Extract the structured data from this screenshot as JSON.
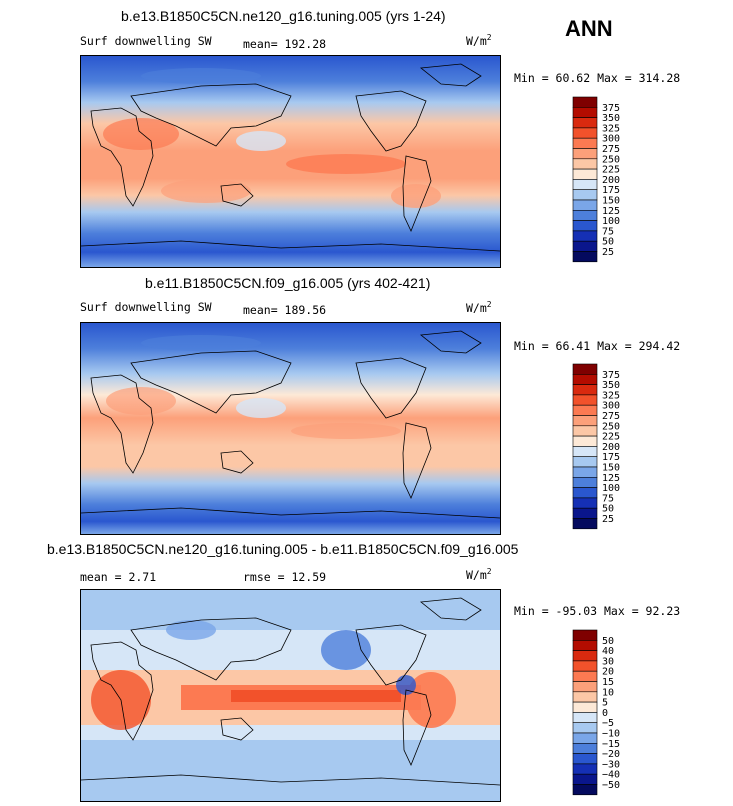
{
  "season": "ANN",
  "panels": [
    {
      "title": "b.e13.B1850C5CN.ne120_g16.tuning.005 (yrs 1-24)",
      "left_label": "Surf downwelling SW",
      "mid_label": "mean= 192.28",
      "units_base": "W/m",
      "units_sup": "2",
      "minmax": "Min =  60.62 Max = 314.28",
      "levels": [
        "375",
        "350",
        "325",
        "300",
        "275",
        "250",
        "225",
        "200",
        "175",
        "150",
        "125",
        "100",
        "75",
        "50",
        "25"
      ],
      "colors": [
        "#7f0000",
        "#b30c00",
        "#d92a0f",
        "#f2522b",
        "#fc7a52",
        "#fca07a",
        "#fcc7a6",
        "#fde9d7",
        "#d6e6f7",
        "#a7c9f0",
        "#7aa6e8",
        "#4d7fdb",
        "#2a57cf",
        "#1530b5",
        "#0a168c",
        "#040a5e"
      ]
    },
    {
      "title": "b.e11.B1850C5CN.f09_g16.005 (yrs 402-421)",
      "left_label": "Surf downwelling SW",
      "mid_label": "mean= 189.56",
      "units_base": "W/m",
      "units_sup": "2",
      "minmax": "Min =  66.41 Max = 294.42",
      "levels": [
        "375",
        "350",
        "325",
        "300",
        "275",
        "250",
        "225",
        "200",
        "175",
        "150",
        "125",
        "100",
        "75",
        "50",
        "25"
      ],
      "colors": [
        "#7f0000",
        "#b30c00",
        "#d92a0f",
        "#f2522b",
        "#fc7a52",
        "#fca07a",
        "#fcc7a6",
        "#fde9d7",
        "#d6e6f7",
        "#a7c9f0",
        "#7aa6e8",
        "#4d7fdb",
        "#2a57cf",
        "#1530b5",
        "#0a168c",
        "#040a5e"
      ]
    },
    {
      "title": "b.e13.B1850C5CN.ne120_g16.tuning.005 - b.e11.B1850C5CN.f09_g16.005",
      "left_label": "mean =   2.71",
      "mid_label": "rmse =  12.59",
      "units_base": "W/m",
      "units_sup": "2",
      "minmax": "Min = -95.03 Max =  92.23",
      "levels": [
        "50",
        "40",
        "30",
        "20",
        "15",
        "10",
        "5",
        "0",
        "−5",
        "−10",
        "−15",
        "−20",
        "−30",
        "−40",
        "−50"
      ],
      "colors": [
        "#7f0000",
        "#b30c00",
        "#d92a0f",
        "#f2522b",
        "#fc7a52",
        "#fca07a",
        "#fcc7a6",
        "#fde9d7",
        "#d6e6f7",
        "#a7c9f0",
        "#7aa6e8",
        "#4d7fdb",
        "#2a57cf",
        "#1530b5",
        "#0a168c",
        "#040a5e"
      ]
    }
  ]
}
